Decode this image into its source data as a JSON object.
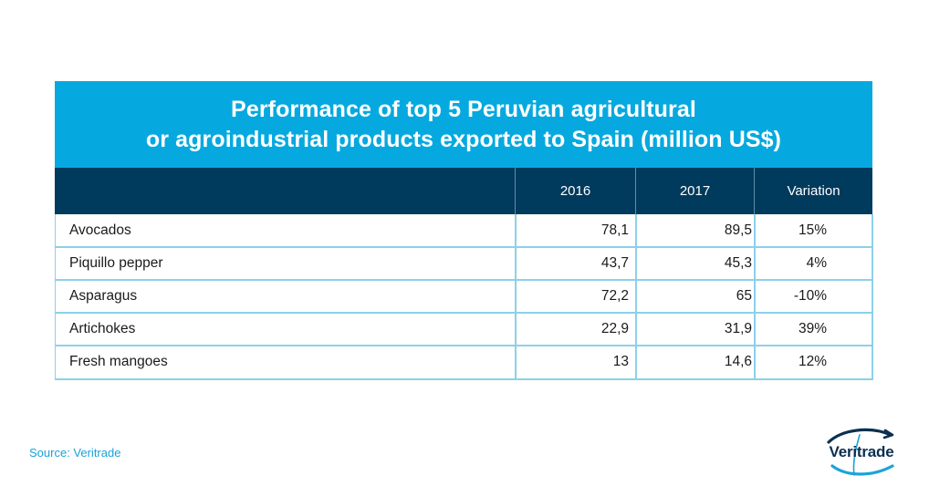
{
  "chart_data": {
    "type": "table",
    "title_lines": [
      "Performance of top 5 Peruvian agricultural",
      "or agroindustrial products exported to Spain (million US$)"
    ],
    "columns": [
      "",
      "2016",
      "2017",
      "Variation"
    ],
    "rows": [
      {
        "product": "Avocados",
        "v2016": "78,1",
        "v2017": "89,5",
        "variation": "15%"
      },
      {
        "product": "Piquillo pepper",
        "v2016": "43,7",
        "v2017": "45,3",
        "variation": "4%"
      },
      {
        "product": "Asparagus",
        "v2016": "72,2",
        "v2017": "65",
        "variation": "-10%"
      },
      {
        "product": "Artichokes",
        "v2016": "22,9",
        "v2017": "31,9",
        "variation": "39%"
      },
      {
        "product": "Fresh mangoes",
        "v2016": "13",
        "v2017": "14,6",
        "variation": "12%"
      }
    ]
  },
  "footer": {
    "source": "Source: Veritrade",
    "logo_text": "Veritrade"
  },
  "colors": {
    "title_bg": "#06a9df",
    "header_bg": "#003a5d",
    "grid": "#8dd0ea",
    "source_text": "#1aa3d8",
    "logo_navy": "#0b3050"
  }
}
